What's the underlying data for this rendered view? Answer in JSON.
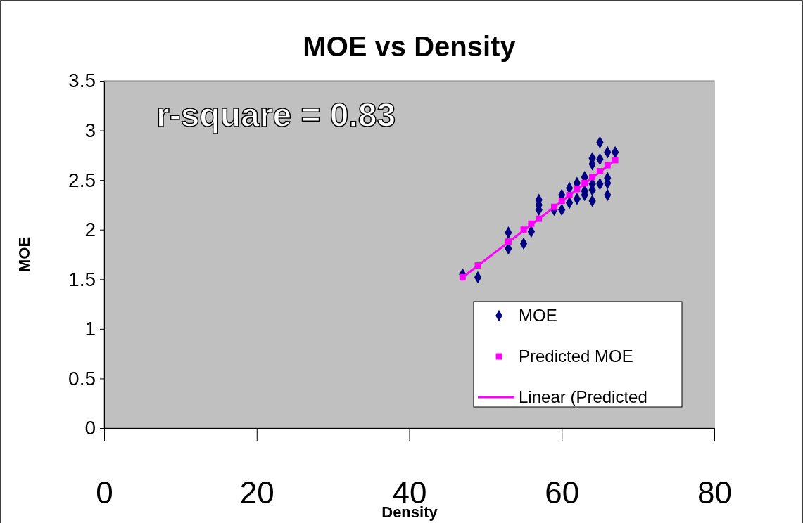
{
  "chart_data": {
    "type": "scatter",
    "title": "MOE vs Density",
    "xlabel": "Density",
    "ylabel": "MOE",
    "annotations": [
      "r-square = 0.83"
    ],
    "xlim": [
      0,
      80
    ],
    "xticks": [
      0,
      20,
      40,
      60,
      80
    ],
    "ylim": [
      0,
      3.5
    ],
    "yticks": [
      0,
      0.5,
      1,
      1.5,
      2,
      2.5,
      3,
      3.5
    ],
    "grid": false,
    "legend": "bottom right",
    "series": [
      {
        "name": "MOE",
        "marker": "diamond",
        "color": "#000080",
        "x": [
          47,
          49,
          53,
          53,
          55,
          56,
          57,
          57,
          57,
          59,
          60,
          60,
          61,
          61,
          62,
          62,
          63,
          63,
          63,
          64,
          64,
          64,
          64,
          64,
          65,
          65,
          65,
          66,
          66,
          66,
          66,
          67
        ],
        "values": [
          1.55,
          1.52,
          1.97,
          1.81,
          1.86,
          1.98,
          2.3,
          2.25,
          2.2,
          2.2,
          2.35,
          2.2,
          2.42,
          2.27,
          2.47,
          2.31,
          2.53,
          2.39,
          2.35,
          2.72,
          2.66,
          2.46,
          2.4,
          2.29,
          2.88,
          2.71,
          2.46,
          2.78,
          2.52,
          2.47,
          2.35,
          2.78
        ]
      },
      {
        "name": "Predicted MOE",
        "marker": "square",
        "color": "#ff00ff",
        "x": [
          47,
          49,
          53,
          55,
          56,
          57,
          59,
          60,
          61,
          62,
          63,
          64,
          65,
          66,
          67
        ],
        "values": [
          1.52,
          1.64,
          1.88,
          2.0,
          2.06,
          2.11,
          2.23,
          2.29,
          2.35,
          2.41,
          2.47,
          2.53,
          2.59,
          2.65,
          2.7
        ]
      },
      {
        "name": "Linear (Predicted",
        "type": "line",
        "marker": "none",
        "line_style": "solid",
        "color": "#ff00ff",
        "x": [
          47,
          67
        ],
        "values": [
          1.52,
          2.7
        ]
      }
    ]
  }
}
